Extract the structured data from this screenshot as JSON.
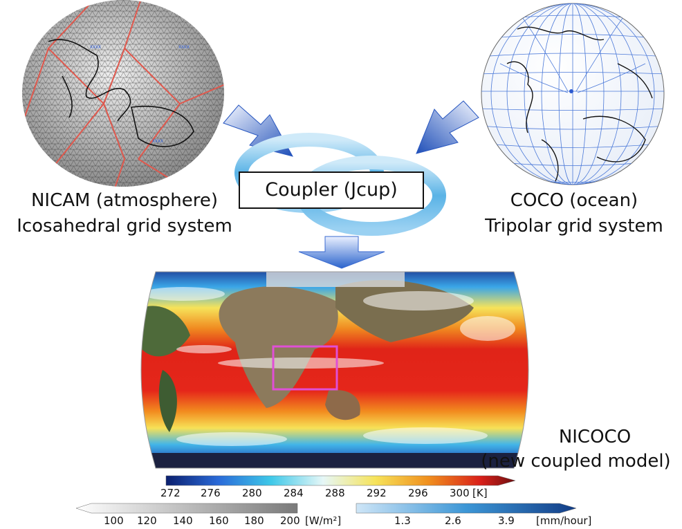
{
  "atmosphere": {
    "title": "NICAM (atmosphere)",
    "subtitle": "Icosahedral grid system"
  },
  "ocean": {
    "title": "COCO (ocean)",
    "subtitle": "Tripolar grid system"
  },
  "coupler": {
    "label": "Coupler  (Jcup)"
  },
  "result": {
    "title": "NICOCO",
    "subtitle": "(new coupled model)"
  },
  "colorbars": {
    "temperature": {
      "ticks": [
        "272",
        "276",
        "280",
        "284",
        "288",
        "292",
        "296",
        "300"
      ],
      "unit": "[K]"
    },
    "radiation": {
      "ticks": [
        "100",
        "120",
        "140",
        "160",
        "180",
        "200"
      ],
      "unit": "[W/m²]"
    },
    "precip": {
      "ticks": [
        "1.3",
        "2.6",
        "3.9"
      ],
      "unit": "[mm/hour]"
    }
  }
}
